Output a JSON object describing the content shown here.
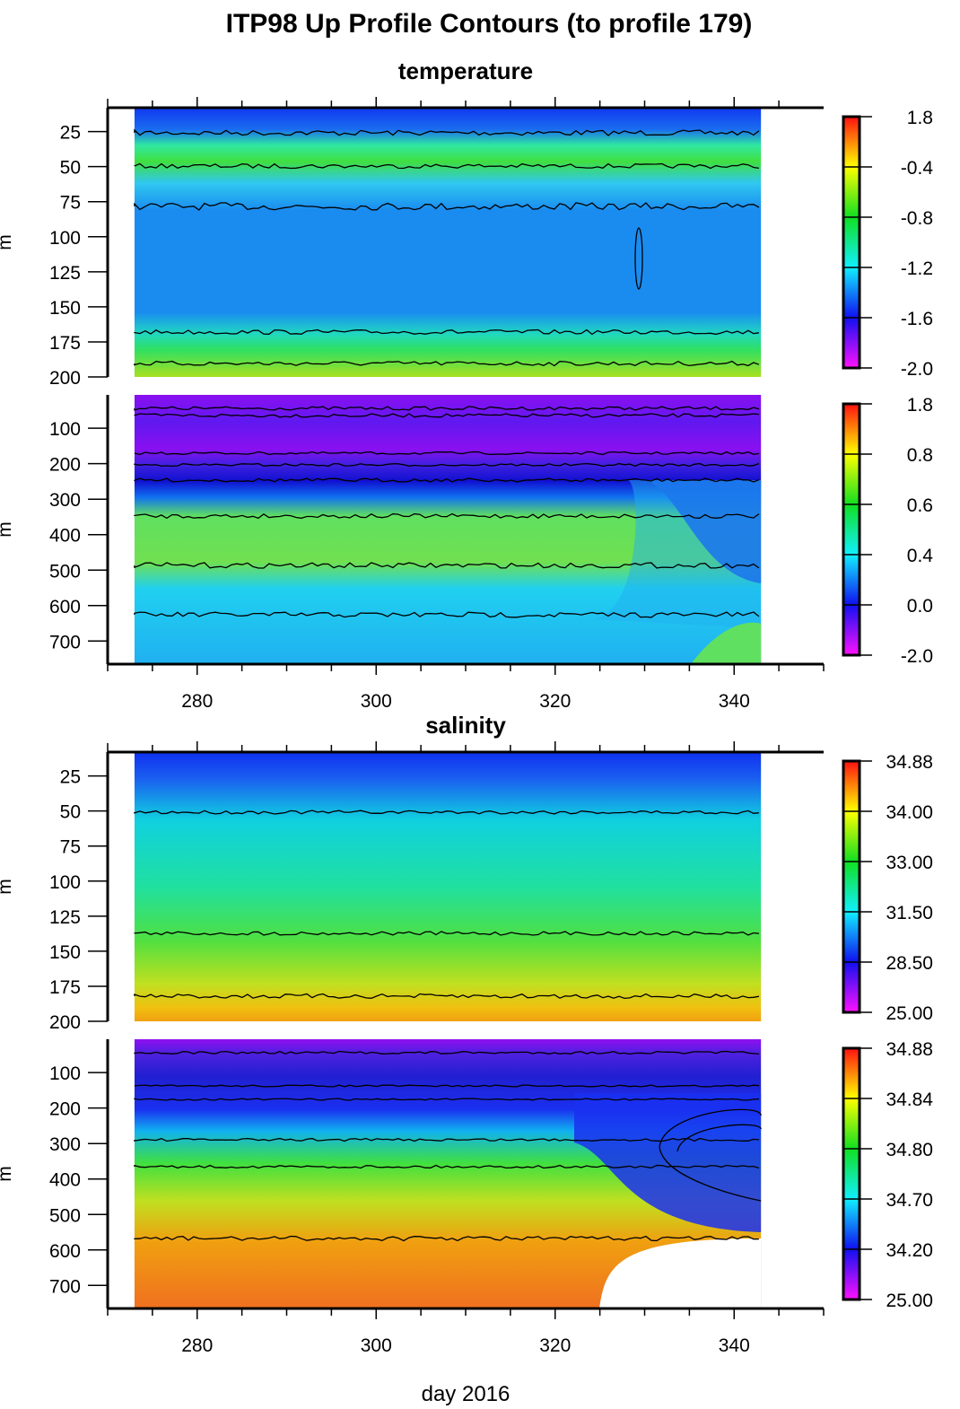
{
  "title": "ITP98 Up Profile Contours (to profile 179)",
  "xlabel": "day 2016",
  "sections": [
    {
      "title": "temperature"
    },
    {
      "title": "salinity"
    }
  ],
  "chart_data": [
    {
      "type": "heatmap",
      "section": "temperature",
      "ylabel": "m",
      "xlim": [
        270,
        350
      ],
      "data_x_range": [
        273,
        343
      ],
      "ylim": [
        200,
        8
      ],
      "xticks": [
        "280",
        "300",
        "320",
        "340"
      ],
      "yticks": [
        "25",
        "50",
        "75",
        "100",
        "125",
        "150",
        "175",
        "200"
      ],
      "colorbar_ticks": [
        "1.8",
        "-0.4",
        "-0.8",
        "-1.2",
        "-1.6",
        "-2.0"
      ],
      "colorscale": [
        "#ff00ff",
        "#0000ff",
        "#00ffff",
        "#00ff00",
        "#ffff00",
        "#ff0000"
      ]
    },
    {
      "type": "heatmap",
      "section": "temperature",
      "ylabel": "m",
      "xlim": [
        270,
        350
      ],
      "data_x_range": [
        273,
        343
      ],
      "ylim": [
        765,
        6
      ],
      "xticks": [
        "280",
        "300",
        "320",
        "340"
      ],
      "yticks": [
        "100",
        "200",
        "300",
        "400",
        "500",
        "600",
        "700"
      ],
      "colorbar_ticks": [
        "1.8",
        "0.8",
        "0.6",
        "0.4",
        "0.0",
        "-2.0"
      ],
      "colorscale": [
        "#ff00ff",
        "#0000ff",
        "#00ffff",
        "#00ff00",
        "#ffff00",
        "#ff0000"
      ]
    },
    {
      "type": "heatmap",
      "section": "salinity",
      "ylabel": "m",
      "xlim": [
        270,
        350
      ],
      "data_x_range": [
        273,
        343
      ],
      "ylim": [
        200,
        8
      ],
      "xticks": [
        "280",
        "300",
        "320",
        "340"
      ],
      "yticks": [
        "25",
        "50",
        "75",
        "100",
        "125",
        "150",
        "175",
        "200"
      ],
      "colorbar_ticks": [
        "34.88",
        "34.00",
        "33.00",
        "31.50",
        "28.50",
        "25.00"
      ],
      "colorscale": [
        "#ff00ff",
        "#0000ff",
        "#00ffff",
        "#00ff00",
        "#ffff00",
        "#ff0000"
      ]
    },
    {
      "type": "heatmap",
      "section": "salinity",
      "ylabel": "m",
      "xlim": [
        270,
        350
      ],
      "data_x_range": [
        273,
        343
      ],
      "ylim": [
        765,
        6
      ],
      "xticks": [
        "280",
        "300",
        "320",
        "340"
      ],
      "yticks": [
        "100",
        "200",
        "300",
        "400",
        "500",
        "600",
        "700"
      ],
      "colorbar_ticks": [
        "34.88",
        "34.84",
        "34.80",
        "34.70",
        "34.20",
        "25.00"
      ],
      "colorscale": [
        "#ff00ff",
        "#0000ff",
        "#00ffff",
        "#00ff00",
        "#ffff00",
        "#ff0000"
      ]
    }
  ]
}
